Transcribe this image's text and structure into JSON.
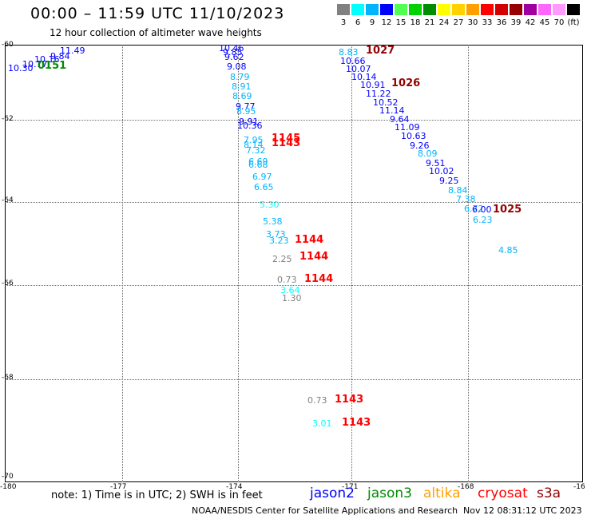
{
  "header": {
    "title": "00:00 – 11:59 UTC 11/10/2023",
    "subtitle": "12 hour collection of altimeter wave heights"
  },
  "color_scale": {
    "labels": [
      "3",
      "6",
      "9",
      "12",
      "15",
      "18",
      "21",
      "24",
      "27",
      "30",
      "33",
      "36",
      "39",
      "42",
      "45",
      "70",
      "(ft)"
    ],
    "colors": [
      "#808080",
      "#00ffff",
      "#00b4ff",
      "#0000ff",
      "#50ff50",
      "#00d200",
      "#008c00",
      "#ffff00",
      "#ffd200",
      "#ffa000",
      "#ff0000",
      "#d20000",
      "#960000",
      "#a000a0",
      "#ff64ff",
      "#ff9bff",
      "#000000"
    ]
  },
  "map": {
    "lat_labels": [
      "-60",
      "-62",
      "-64",
      "-66",
      "-68",
      "-70"
    ],
    "lon_labels": [
      "-180",
      "-177",
      "-174",
      "-171",
      "-168",
      "-16"
    ]
  },
  "observations": [
    {
      "text": "11.49",
      "c": "#0000ff"
    },
    {
      "text": "9.84",
      "c": "#0000ff"
    },
    {
      "text": "10.16",
      "c": "#0000ff"
    },
    {
      "text": "10.77",
      "c": "#0000ff"
    },
    {
      "text": "10.30",
      "c": "#0000ff"
    },
    {
      "text": "10.46",
      "c": "#0000ff"
    },
    {
      "text": "9.85",
      "c": "#0000ff"
    },
    {
      "text": "9.62",
      "c": "#0000ff"
    },
    {
      "text": "9.08",
      "c": "#0000ff"
    },
    {
      "text": "8.79",
      "c": "#00b4ff"
    },
    {
      "text": "8.91",
      "c": "#00b4ff"
    },
    {
      "text": "8.69",
      "c": "#00b4ff"
    },
    {
      "text": "9.77",
      "c": "#0000ff"
    },
    {
      "text": "8.95",
      "c": "#00b4ff"
    },
    {
      "text": "9.91",
      "c": "#0000ff"
    },
    {
      "text": "10.36",
      "c": "#0000ff"
    },
    {
      "text": "7.95",
      "c": "#00b4ff"
    },
    {
      "text": "8.14",
      "c": "#00b4ff"
    },
    {
      "text": "7.32",
      "c": "#00b4ff"
    },
    {
      "text": "6.69",
      "c": "#00b4ff"
    },
    {
      "text": "6.68",
      "c": "#00b4ff"
    },
    {
      "text": "6.97",
      "c": "#00b4ff"
    },
    {
      "text": "6.65",
      "c": "#00b4ff"
    },
    {
      "text": "5.30",
      "c": "#00ffff"
    },
    {
      "text": "5.38",
      "c": "#00b4ff"
    },
    {
      "text": "3.73",
      "c": "#00b4ff"
    },
    {
      "text": "3.23",
      "c": "#00b4ff"
    },
    {
      "text": "2.25",
      "c": "#808080"
    },
    {
      "text": "0.73",
      "c": "#808080"
    },
    {
      "text": "3.64",
      "c": "#00ffff"
    },
    {
      "text": "1.30",
      "c": "#808080"
    },
    {
      "text": "0.73",
      "c": "#808080"
    },
    {
      "text": "3.01",
      "c": "#00ffff"
    },
    {
      "text": "8.83",
      "c": "#00b4ff"
    },
    {
      "text": "10.66",
      "c": "#0000ff"
    },
    {
      "text": "10.07",
      "c": "#0000ff"
    },
    {
      "text": "10.14",
      "c": "#0000ff"
    },
    {
      "text": "10.91",
      "c": "#0000ff"
    },
    {
      "text": "11.22",
      "c": "#0000ff"
    },
    {
      "text": "10.52",
      "c": "#0000ff"
    },
    {
      "text": "11.14",
      "c": "#0000ff"
    },
    {
      "text": "9.64",
      "c": "#0000ff"
    },
    {
      "text": "11.09",
      "c": "#0000ff"
    },
    {
      "text": "10.63",
      "c": "#0000ff"
    },
    {
      "text": "9.26",
      "c": "#0000ff"
    },
    {
      "text": "8.09",
      "c": "#00b4ff"
    },
    {
      "text": "9.51",
      "c": "#0000ff"
    },
    {
      "text": "10.02",
      "c": "#0000ff"
    },
    {
      "text": "9.25",
      "c": "#0000ff"
    },
    {
      "text": "8.84",
      "c": "#00b4ff"
    },
    {
      "text": "7.38",
      "c": "#00b4ff"
    },
    {
      "text": "6.72",
      "c": "#00b4ff"
    },
    {
      "text": "6.00",
      "c": "#0000ff"
    },
    {
      "text": "6.23",
      "c": "#00b4ff"
    },
    {
      "text": "4.85",
      "c": "#00b4ff"
    }
  ],
  "time_labels": [
    {
      "text": "0151",
      "c": "#008c00"
    },
    {
      "text": "1027",
      "c": "#960000"
    },
    {
      "text": "1026",
      "c": "#960000"
    },
    {
      "text": "1025",
      "c": "#960000"
    },
    {
      "text": "1145",
      "c": "#ff0000"
    },
    {
      "text": "1143",
      "c": "#ff0000"
    },
    {
      "text": "1144",
      "c": "#ff0000"
    },
    {
      "text": "1144",
      "c": "#ff0000"
    },
    {
      "text": "1144",
      "c": "#ff0000"
    },
    {
      "text": "1143",
      "c": "#ff0000"
    },
    {
      "text": "1143",
      "c": "#ff0000"
    }
  ],
  "footer": {
    "note": "note:  1) Time is in UTC;  2) SWH is in feet",
    "missions": [
      {
        "name": "jason2",
        "c": "#0000ff"
      },
      {
        "name": "jason3",
        "c": "#008c00"
      },
      {
        "name": "altika",
        "c": "#ffa000"
      },
      {
        "name": "cryosat",
        "c": "#ff0000"
      },
      {
        "name": "s3a",
        "c": "#960000"
      }
    ],
    "credit": "NOAA/NESDIS Center for Satellite Applications and Research",
    "timestamp": "Nov 12 08:31:12 UTC 2023"
  }
}
